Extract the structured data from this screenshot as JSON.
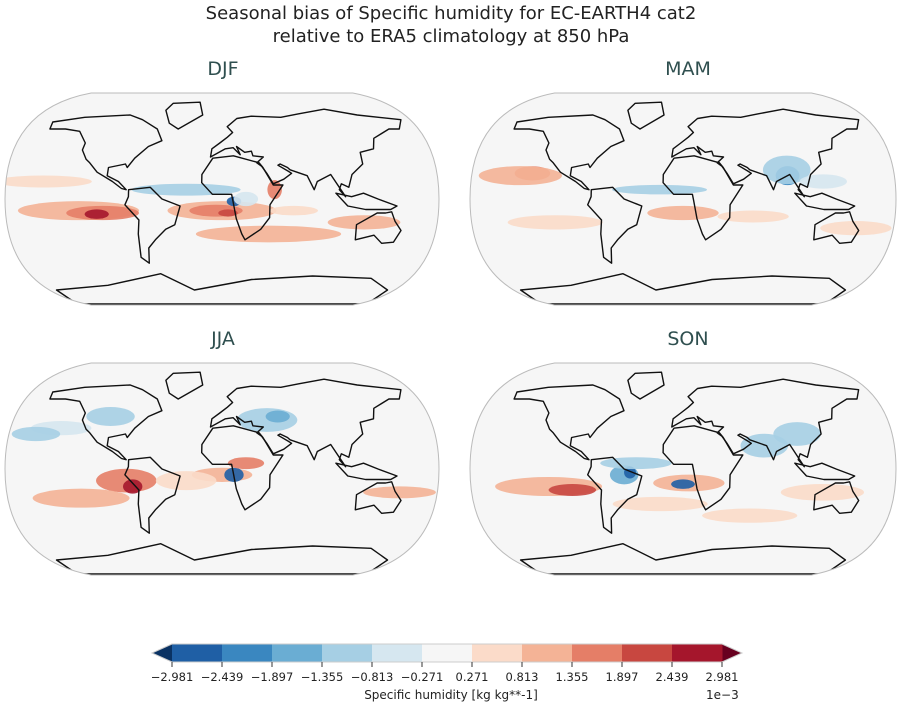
{
  "title_line1": "Seasonal bias of Specific humidity for EC-EARTH4 cat2",
  "title_line2": "relative to ERA5 climatology at 850 hPa",
  "panels": [
    {
      "season": "DJF"
    },
    {
      "season": "MAM"
    },
    {
      "season": "JJA"
    },
    {
      "season": "SON"
    }
  ],
  "colorbar": {
    "label": "Specific humidity [kg kg**-1]",
    "scale_label": "1e−3",
    "ticks": [
      "−2.981",
      "−2.439",
      "−1.897",
      "−1.355",
      "−0.813",
      "−0.271",
      "0.271",
      "0.813",
      "1.355",
      "1.897",
      "2.439",
      "2.981"
    ],
    "colors": [
      "#1f5fa5",
      "#3a87c0",
      "#6aadd3",
      "#a6cfe4",
      "#d6e7f0",
      "#f6f6f6",
      "#fbdbc9",
      "#f4b396",
      "#e57e67",
      "#c84740",
      "#a5162c"
    ],
    "extend_min_color": "#0a3263",
    "extend_max_color": "#67001f",
    "extend": "both"
  },
  "projection": "Robinson"
}
